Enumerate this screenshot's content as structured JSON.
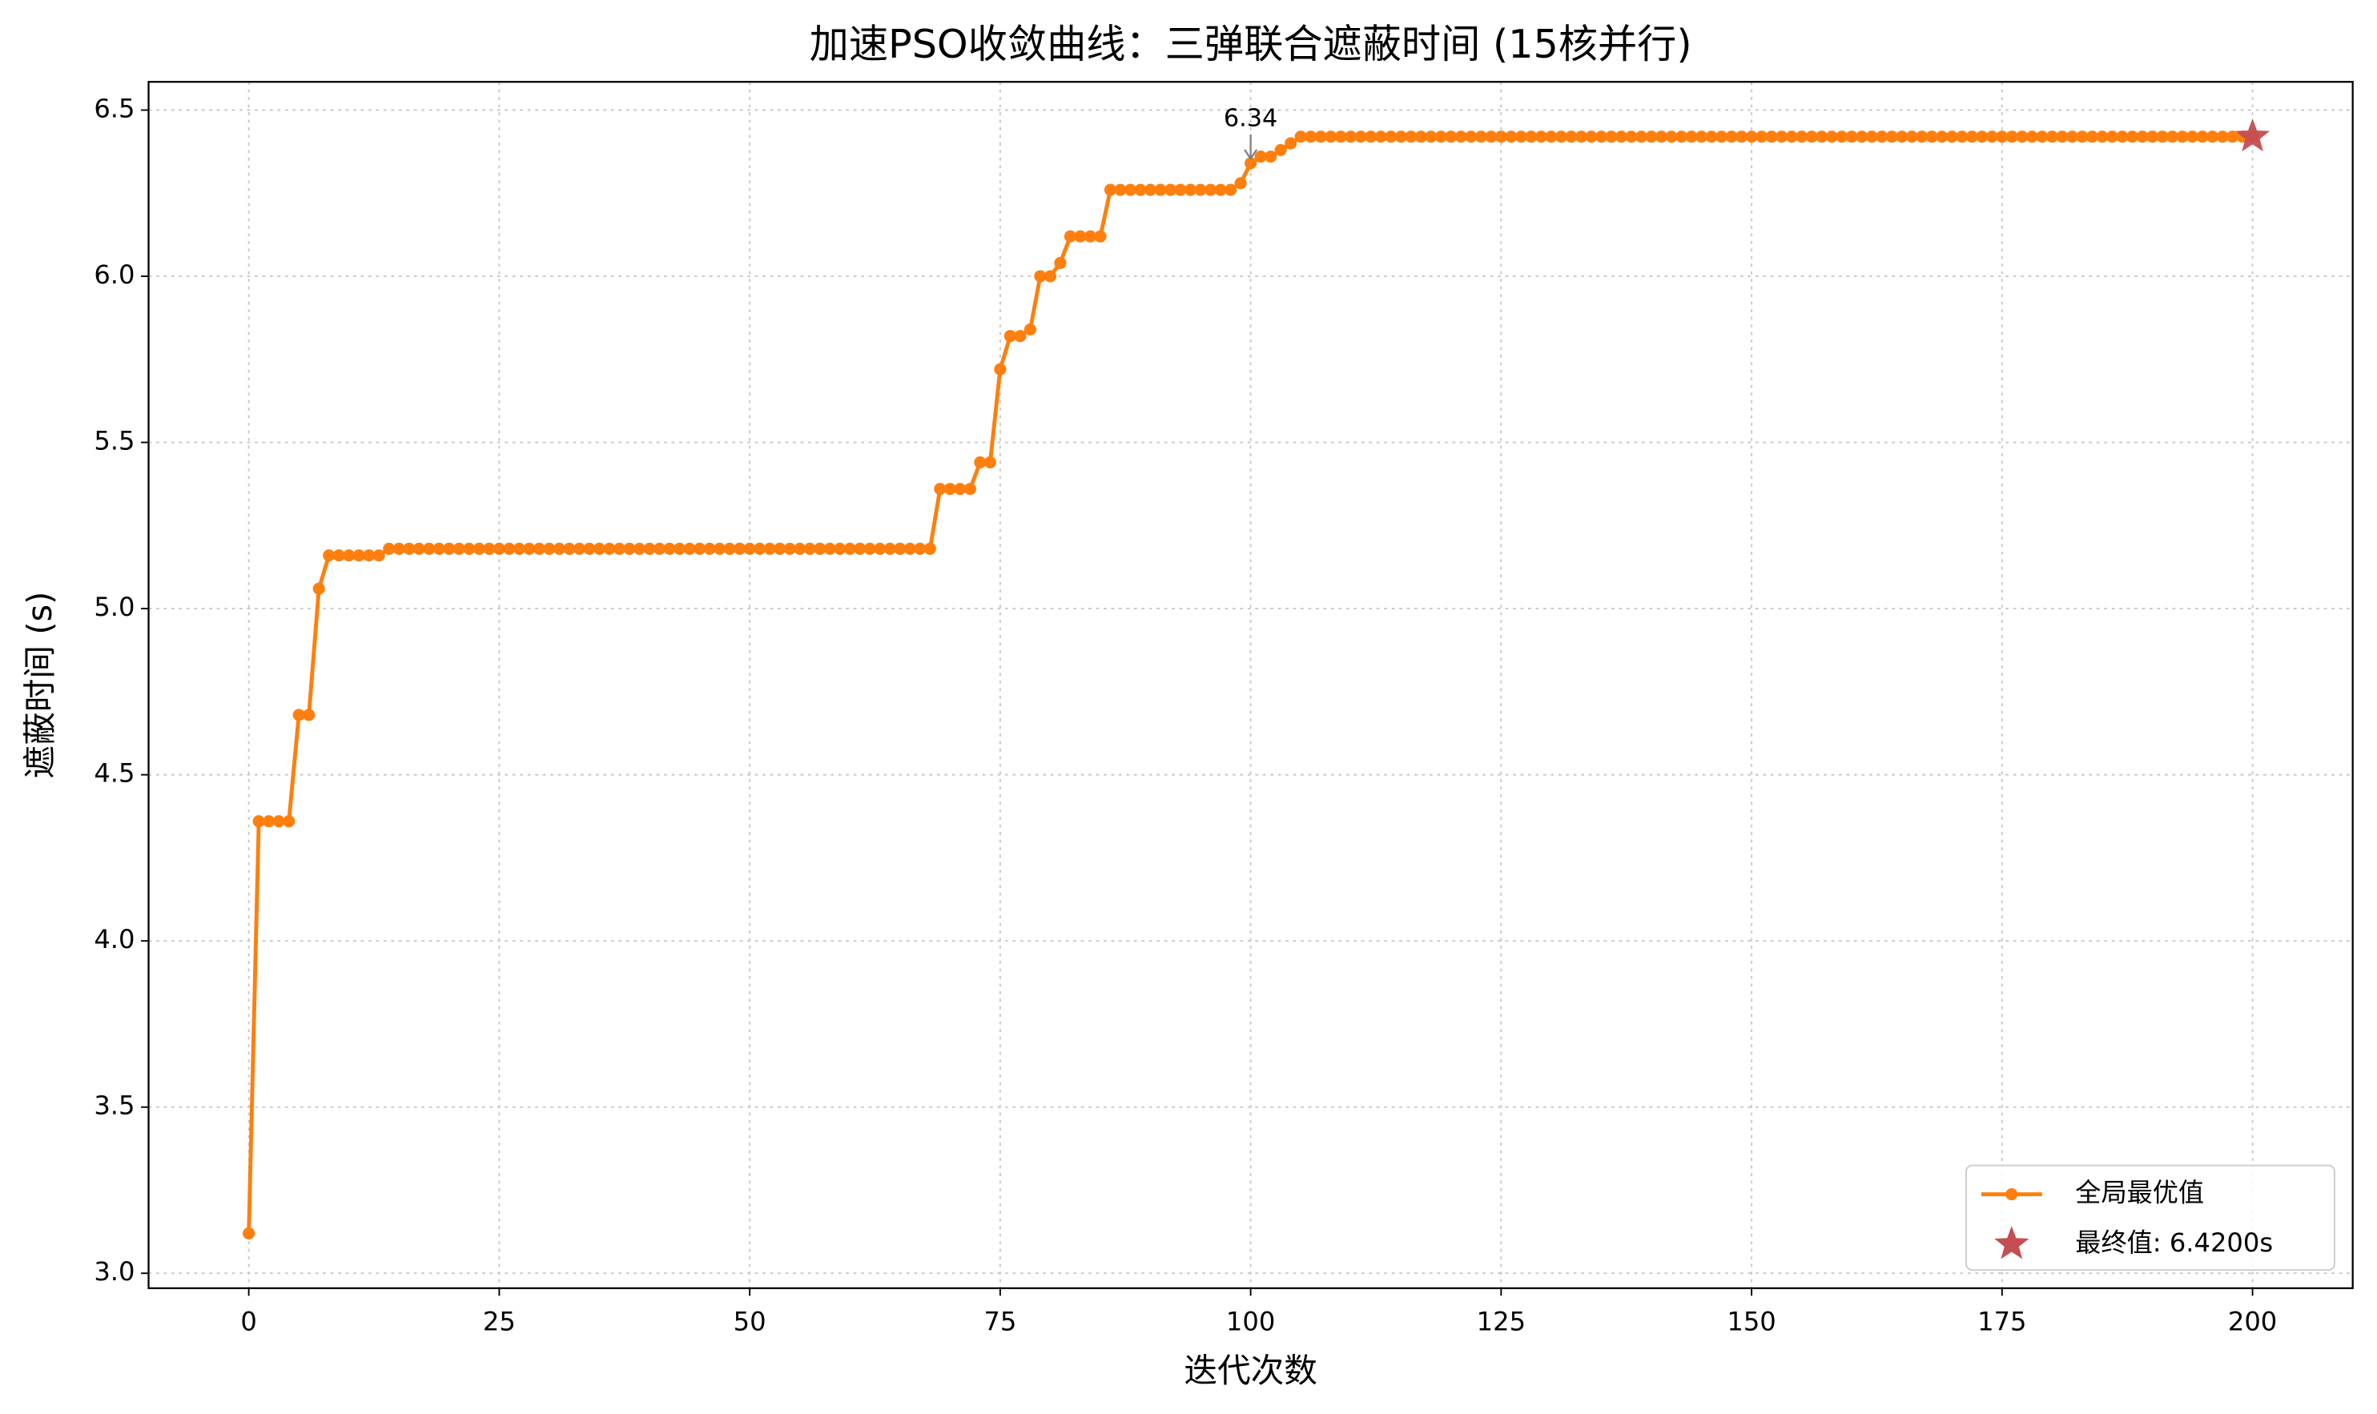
{
  "chart_data": {
    "type": "line",
    "title": "加速PSO收敛曲线：三弹联合遮蔽时间 (15核并行)",
    "xlabel": "迭代次数",
    "ylabel": "遮蔽时间 (s)",
    "xlim": [
      -10,
      210
    ],
    "ylim": [
      2.955,
      6.585
    ],
    "xticks": [
      0,
      25,
      50,
      75,
      100,
      125,
      150,
      175,
      200
    ],
    "yticks": [
      {
        "value": 3,
        "label": "3.0"
      },
      3.5,
      {
        "value": 4,
        "label": "4.0"
      },
      4.5,
      {
        "value": 5,
        "label": "5.0"
      },
      5.5,
      {
        "value": 6,
        "label": "6.0"
      },
      6.5
    ],
    "grid": true,
    "legend": "lower right",
    "annotations": [
      {
        "text": "6.34",
        "x": 100,
        "y": 6.34
      }
    ],
    "series": [
      {
        "name": "全局最优值",
        "color": "#ff7f0e",
        "marker": "circle",
        "x": [
          0,
          1,
          2,
          3,
          4,
          5,
          6,
          7,
          8,
          9,
          10,
          11,
          12,
          13,
          14,
          15,
          16,
          17,
          18,
          19,
          20,
          21,
          22,
          23,
          24,
          25,
          26,
          27,
          28,
          29,
          30,
          31,
          32,
          33,
          34,
          35,
          36,
          37,
          38,
          39,
          40,
          41,
          42,
          43,
          44,
          45,
          46,
          47,
          48,
          49,
          50,
          51,
          52,
          53,
          54,
          55,
          56,
          57,
          58,
          59,
          60,
          61,
          62,
          63,
          64,
          65,
          66,
          67,
          68,
          69,
          70,
          71,
          72,
          73,
          74,
          75,
          76,
          77,
          78,
          79,
          80,
          81,
          82,
          83,
          84,
          85,
          86,
          87,
          88,
          89,
          90,
          91,
          92,
          93,
          94,
          95,
          96,
          97,
          98,
          99,
          100,
          101,
          102,
          103,
          104,
          105,
          106,
          107,
          108,
          109,
          110,
          111,
          112,
          113,
          114,
          115,
          116,
          117,
          118,
          119,
          120,
          121,
          122,
          123,
          124,
          125,
          126,
          127,
          128,
          129,
          130,
          131,
          132,
          133,
          134,
          135,
          136,
          137,
          138,
          139,
          140,
          141,
          142,
          143,
          144,
          145,
          146,
          147,
          148,
          149,
          150,
          151,
          152,
          153,
          154,
          155,
          156,
          157,
          158,
          159,
          160,
          161,
          162,
          163,
          164,
          165,
          166,
          167,
          168,
          169,
          170,
          171,
          172,
          173,
          174,
          175,
          176,
          177,
          178,
          179,
          180,
          181,
          182,
          183,
          184,
          185,
          186,
          187,
          188,
          189,
          190,
          191,
          192,
          193,
          194,
          195,
          196,
          197,
          198,
          199,
          200
        ],
        "values": [
          3.12,
          4.36,
          4.36,
          4.36,
          4.36,
          4.68,
          4.68,
          5.06,
          5.16,
          5.16,
          5.16,
          5.16,
          5.16,
          5.16,
          5.18,
          5.18,
          5.18,
          5.18,
          5.18,
          5.18,
          5.18,
          5.18,
          5.18,
          5.18,
          5.18,
          5.18,
          5.18,
          5.18,
          5.18,
          5.18,
          5.18,
          5.18,
          5.18,
          5.18,
          5.18,
          5.18,
          5.18,
          5.18,
          5.18,
          5.18,
          5.18,
          5.18,
          5.18,
          5.18,
          5.18,
          5.18,
          5.18,
          5.18,
          5.18,
          5.18,
          5.18,
          5.18,
          5.18,
          5.18,
          5.18,
          5.18,
          5.18,
          5.18,
          5.18,
          5.18,
          5.18,
          5.18,
          5.18,
          5.18,
          5.18,
          5.18,
          5.18,
          5.18,
          5.18,
          5.36,
          5.36,
          5.36,
          5.36,
          5.44,
          5.44,
          5.72,
          5.82,
          5.82,
          5.84,
          6.0,
          6.0,
          6.04,
          6.12,
          6.12,
          6.12,
          6.12,
          6.26,
          6.26,
          6.26,
          6.26,
          6.26,
          6.26,
          6.26,
          6.26,
          6.26,
          6.26,
          6.26,
          6.26,
          6.26,
          6.28,
          6.34,
          6.36,
          6.36,
          6.38,
          6.4,
          6.42,
          6.42,
          6.42,
          6.42,
          6.42,
          6.42,
          6.42,
          6.42,
          6.42,
          6.42,
          6.42,
          6.42,
          6.42,
          6.42,
          6.42,
          6.42,
          6.42,
          6.42,
          6.42,
          6.42,
          6.42,
          6.42,
          6.42,
          6.42,
          6.42,
          6.42,
          6.42,
          6.42,
          6.42,
          6.42,
          6.42,
          6.42,
          6.42,
          6.42,
          6.42,
          6.42,
          6.42,
          6.42,
          6.42,
          6.42,
          6.42,
          6.42,
          6.42,
          6.42,
          6.42,
          6.42,
          6.42,
          6.42,
          6.42,
          6.42,
          6.42,
          6.42,
          6.42,
          6.42,
          6.42,
          6.42,
          6.42,
          6.42,
          6.42,
          6.42,
          6.42,
          6.42,
          6.42,
          6.42,
          6.42,
          6.42,
          6.42,
          6.42,
          6.42,
          6.42,
          6.42,
          6.42,
          6.42,
          6.42,
          6.42,
          6.42,
          6.42,
          6.42,
          6.42,
          6.42,
          6.42,
          6.42,
          6.42,
          6.42,
          6.42,
          6.42,
          6.42,
          6.42,
          6.42,
          6.42,
          6.42,
          6.42,
          6.42,
          6.42,
          6.42,
          6.42
        ]
      },
      {
        "name": "最终值: 6.4200s",
        "color": "#c44e52",
        "marker": "star",
        "x": [
          200
        ],
        "values": [
          6.42
        ]
      }
    ]
  }
}
